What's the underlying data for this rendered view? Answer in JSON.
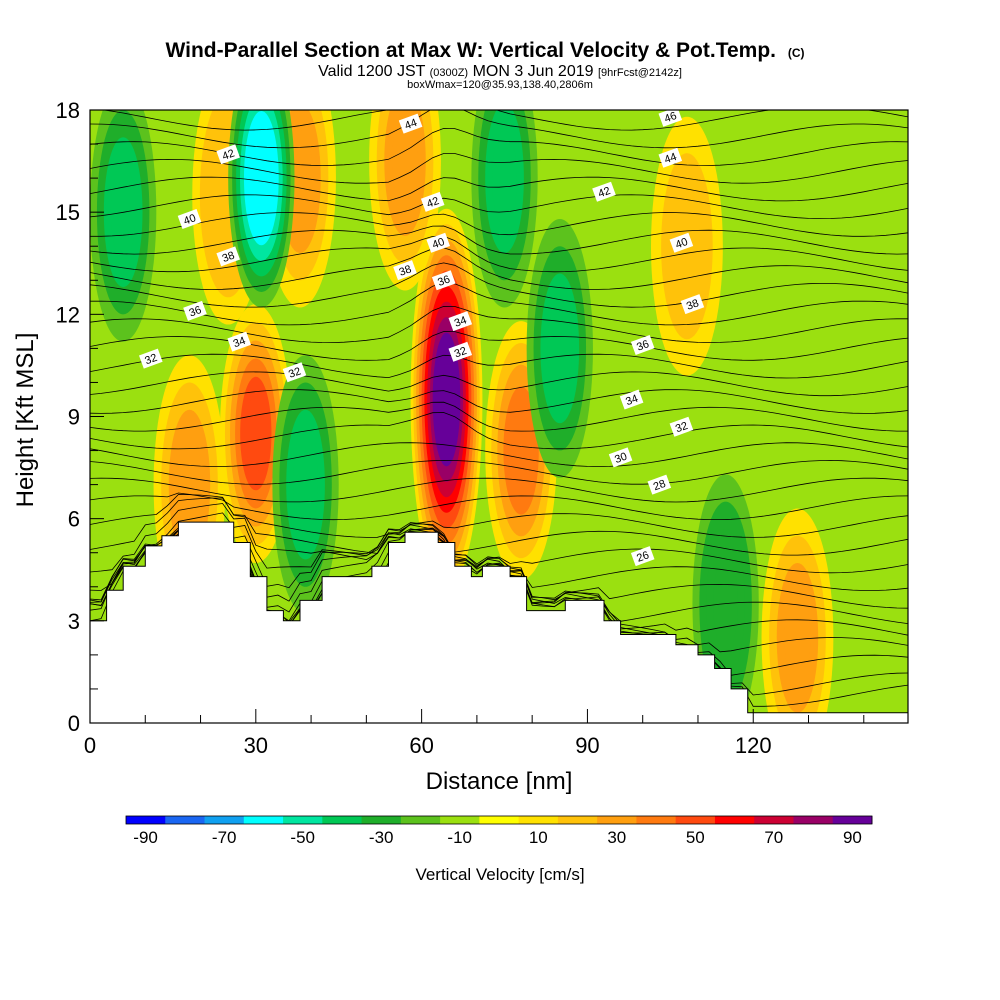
{
  "chart_data": {
    "type": "heatmap",
    "title": "Wind-Parallel Section at Max W: Vertical Velocity & Pot.Temp.",
    "title_mark": "(C)",
    "subtitle": {
      "valid": "Valid 1200 JST",
      "zulu": "(0300Z)",
      "date": "MON 3 Jun 2019",
      "fcst": "[9hrFcst@2142z]"
    },
    "box_note": "boxWmax=120@35.93,138.40,2806m",
    "xlabel": "Distance [nm]",
    "ylabel": "Height [Kft MSL]",
    "xlim": [
      0,
      148
    ],
    "ylim": [
      0,
      18
    ],
    "xticks": [
      0,
      30,
      60,
      90,
      120
    ],
    "yticks": [
      0,
      3,
      6,
      9,
      12,
      15,
      18
    ],
    "colorbar": {
      "label": "Vertical Velocity [cm/s]",
      "tick_labels": [
        "-90",
        "-70",
        "-50",
        "-30",
        "-10",
        "10",
        "30",
        "50",
        "70",
        "90"
      ],
      "colors": [
        "#0000ff",
        "#1a66f2",
        "#10a0f0",
        "#00ffff",
        "#00e6a0",
        "#00c855",
        "#1fae2a",
        "#5cc21d",
        "#9be010",
        "#ffff00",
        "#ffe100",
        "#ffc20a",
        "#ff9f10",
        "#ff7a10",
        "#ff4a10",
        "#ff0000",
        "#cc0033",
        "#990066",
        "#660099"
      ]
    },
    "updraft_cores": [
      {
        "x": 64.5,
        "z": 9.5,
        "w": 100
      },
      {
        "x": 30,
        "z": 8.5,
        "w": 50
      },
      {
        "x": 78,
        "z": 8,
        "w": 40
      },
      {
        "x": 18,
        "z": 7,
        "w": 30
      },
      {
        "x": 128,
        "z": 2.5,
        "w": 30
      },
      {
        "x": 108,
        "z": 14,
        "w": 20
      },
      {
        "x": 57,
        "z": 16.5,
        "w": 30
      },
      {
        "x": 38,
        "z": 16,
        "w": 30
      },
      {
        "x": 25,
        "z": 15.5,
        "w": 25
      }
    ],
    "downdraft_cores": [
      {
        "x": 39,
        "z": 7,
        "w": -30
      },
      {
        "x": 31,
        "z": 16,
        "w": -55
      },
      {
        "x": 75,
        "z": 16,
        "w": -30
      },
      {
        "x": 85,
        "z": 11,
        "w": -30
      },
      {
        "x": 6,
        "z": 15,
        "w": -30
      },
      {
        "x": 115,
        "z": 3.5,
        "w": -25
      }
    ],
    "theta_contours": {
      "interval": 1,
      "labels": [
        {
          "value": "32",
          "x": 11,
          "z": 10.7
        },
        {
          "value": "36",
          "x": 19,
          "z": 12.1
        },
        {
          "value": "38",
          "x": 25,
          "z": 13.7
        },
        {
          "value": "40",
          "x": 18,
          "z": 14.8
        },
        {
          "value": "42",
          "x": 25,
          "z": 16.7
        },
        {
          "value": "34",
          "x": 27,
          "z": 11.2
        },
        {
          "value": "32",
          "x": 37,
          "z": 10.3
        },
        {
          "value": "44",
          "x": 58,
          "z": 17.6
        },
        {
          "value": "42",
          "x": 62,
          "z": 15.3
        },
        {
          "value": "40",
          "x": 63,
          "z": 14.1
        },
        {
          "value": "38",
          "x": 57,
          "z": 13.3
        },
        {
          "value": "36",
          "x": 64,
          "z": 13.0
        },
        {
          "value": "34",
          "x": 67,
          "z": 11.8
        },
        {
          "value": "32",
          "x": 67,
          "z": 10.9
        },
        {
          "value": "42",
          "x": 93,
          "z": 15.6
        },
        {
          "value": "46",
          "x": 105,
          "z": 17.8
        },
        {
          "value": "44",
          "x": 105,
          "z": 16.6
        },
        {
          "value": "40",
          "x": 107,
          "z": 14.1
        },
        {
          "value": "38",
          "x": 109,
          "z": 12.3
        },
        {
          "value": "36",
          "x": 100,
          "z": 11.1
        },
        {
          "value": "34",
          "x": 98,
          "z": 9.5
        },
        {
          "value": "32",
          "x": 107,
          "z": 8.7
        },
        {
          "value": "30",
          "x": 96,
          "z": 7.8
        },
        {
          "value": "28",
          "x": 103,
          "z": 7.0
        },
        {
          "value": "26",
          "x": 100,
          "z": 4.9
        }
      ]
    },
    "terrain": [
      [
        0,
        3.0
      ],
      [
        3,
        3.0
      ],
      [
        3,
        3.9
      ],
      [
        6,
        3.9
      ],
      [
        6,
        4.6
      ],
      [
        10,
        4.6
      ],
      [
        10,
        5.2
      ],
      [
        13,
        5.2
      ],
      [
        13,
        5.5
      ],
      [
        16,
        5.5
      ],
      [
        16,
        5.9
      ],
      [
        26,
        5.9
      ],
      [
        26,
        5.3
      ],
      [
        29,
        5.3
      ],
      [
        29,
        4.3
      ],
      [
        32,
        4.3
      ],
      [
        32,
        3.3
      ],
      [
        35,
        3.3
      ],
      [
        35,
        3.0
      ],
      [
        38,
        3.0
      ],
      [
        38,
        3.6
      ],
      [
        42,
        3.6
      ],
      [
        42,
        4.3
      ],
      [
        51,
        4.3
      ],
      [
        51,
        4.6
      ],
      [
        54,
        4.6
      ],
      [
        54,
        5.3
      ],
      [
        57,
        5.3
      ],
      [
        57,
        5.6
      ],
      [
        63,
        5.6
      ],
      [
        63,
        5.3
      ],
      [
        66,
        5.3
      ],
      [
        66,
        4.6
      ],
      [
        69,
        4.6
      ],
      [
        69,
        4.3
      ],
      [
        71,
        4.3
      ],
      [
        71,
        4.6
      ],
      [
        76,
        4.6
      ],
      [
        76,
        4.3
      ],
      [
        79,
        4.3
      ],
      [
        79,
        3.3
      ],
      [
        86,
        3.3
      ],
      [
        86,
        3.6
      ],
      [
        93,
        3.6
      ],
      [
        93,
        3.0
      ],
      [
        96,
        3.0
      ],
      [
        96,
        2.6
      ],
      [
        106,
        2.6
      ],
      [
        106,
        2.3
      ],
      [
        110,
        2.3
      ],
      [
        110,
        2.0
      ],
      [
        113,
        2.0
      ],
      [
        113,
        1.6
      ],
      [
        116,
        1.6
      ],
      [
        116,
        1.0
      ],
      [
        119,
        1.0
      ],
      [
        119,
        0.3
      ],
      [
        148,
        0.3
      ]
    ]
  }
}
